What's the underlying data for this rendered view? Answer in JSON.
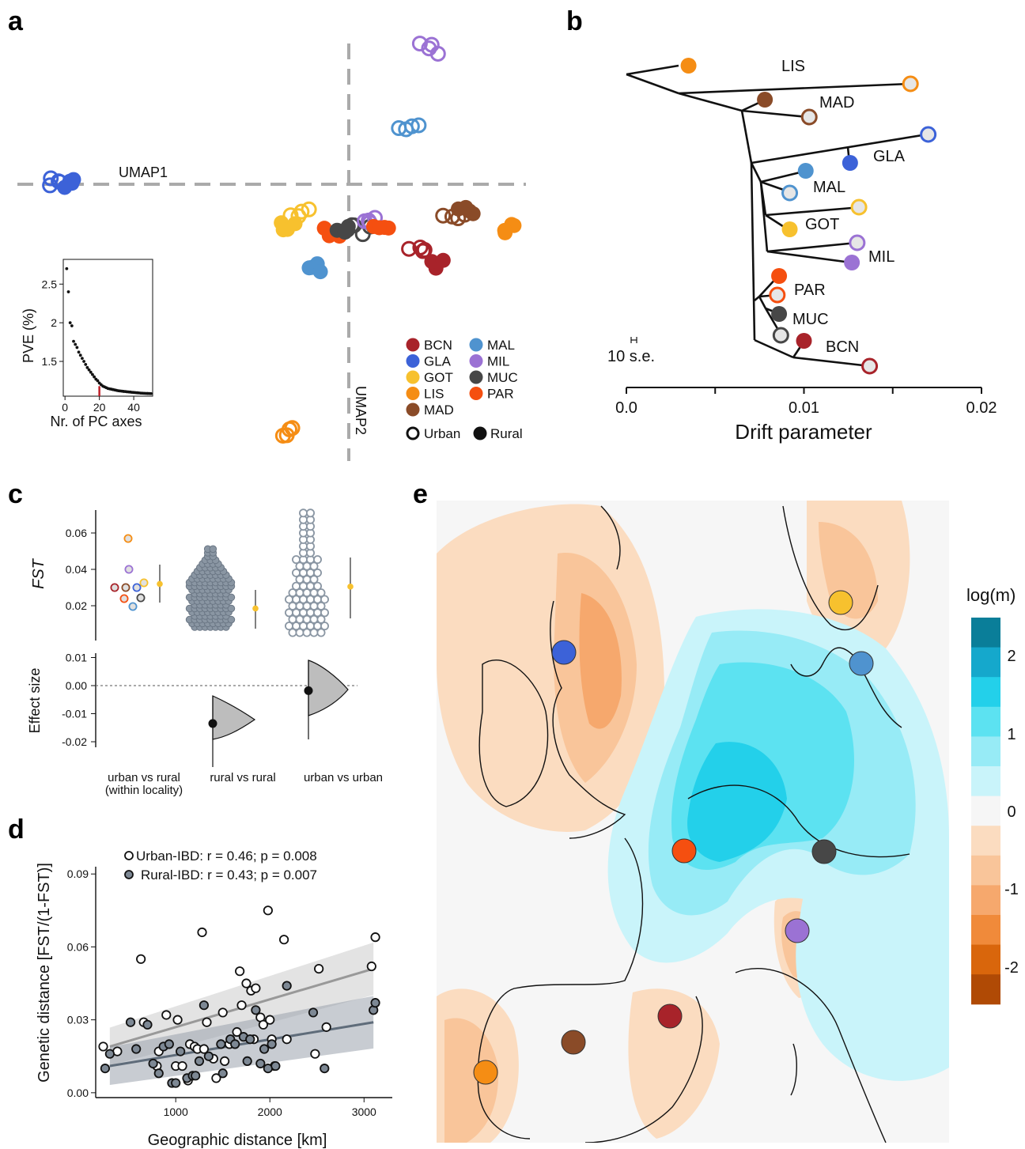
{
  "panels": {
    "a": "a",
    "b": "b",
    "c": "c",
    "d": "d",
    "e": "e"
  },
  "colors": {
    "BCN": "#a8232a",
    "GLA": "#3c62d8",
    "GOT": "#f7c12e",
    "LIS": "#f58d14",
    "MAD": "#8a4b28",
    "MAL": "#4f93cf",
    "MIL": "#9b72d4",
    "MUC": "#474747",
    "PAR": "#f54f10"
  },
  "chart_data": [
    {
      "id": "a",
      "type": "scatter",
      "axis_labels": {
        "umap1": "UMAP1",
        "umap2": "UMAP2"
      },
      "legend": {
        "position": "bottom-right",
        "items": [
          "BCN",
          "GLA",
          "GOT",
          "LIS",
          "MAD",
          "MAL",
          "MIL",
          "MUC",
          "PAR"
        ],
        "shape_items": {
          "urban": "Urban",
          "rural": "Rural"
        }
      },
      "clusters": [
        {
          "pop": "GLA",
          "x": -0.88,
          "y": 0.02,
          "urban": true
        },
        {
          "pop": "GLA",
          "x": -0.85,
          "y": 0.0,
          "urban": false
        },
        {
          "pop": "MIL",
          "x": 0.24,
          "y": 0.88,
          "urban": true
        },
        {
          "pop": "MAL",
          "x": 0.18,
          "y": 0.36,
          "urban": true
        },
        {
          "pop": "LIS",
          "x": 0.5,
          "y": -0.28,
          "urban": false
        },
        {
          "pop": "LIS",
          "x": -0.17,
          "y": -1.6,
          "urban": true
        },
        {
          "pop": "MAD",
          "x": 0.36,
          "y": -0.18,
          "urban": false
        },
        {
          "pop": "MAD",
          "x": 0.32,
          "y": -0.21,
          "urban": true
        },
        {
          "pop": "BCN",
          "x": 0.27,
          "y": -0.52,
          "urban": false
        },
        {
          "pop": "BCN",
          "x": 0.2,
          "y": -0.4,
          "urban": true
        },
        {
          "pop": "MAL",
          "x": -0.1,
          "y": -0.55,
          "urban": false
        },
        {
          "pop": "GOT",
          "x": -0.17,
          "y": -0.26,
          "urban": false
        },
        {
          "pop": "GOT",
          "x": -0.15,
          "y": -0.18,
          "urban": true
        },
        {
          "pop": "PAR",
          "x": -0.04,
          "y": -0.31,
          "urban": false
        },
        {
          "pop": "MUC",
          "x": 0.04,
          "y": -0.3,
          "urban": true
        },
        {
          "pop": "MIL",
          "x": 0.08,
          "y": -0.25,
          "urban": true
        },
        {
          "pop": "PAR",
          "x": 0.1,
          "y": -0.31,
          "urban": false
        },
        {
          "pop": "MUC",
          "x": 0.0,
          "y": -0.28,
          "urban": false
        }
      ],
      "inset": {
        "type": "scatter",
        "xlabel": "Nr. of PC axes",
        "ylabel": "PVE (%)",
        "xticks": [
          0,
          20,
          40
        ],
        "yticks": [
          1.5,
          2.0,
          2.5
        ],
        "xlim": [
          -1,
          51
        ],
        "ylim": [
          1.05,
          2.82
        ],
        "highlight_x": 20,
        "values": [
          2.7,
          2.4,
          2.0,
          1.96,
          1.76,
          1.72,
          1.68,
          1.62,
          1.58,
          1.54,
          1.5,
          1.46,
          1.42,
          1.39,
          1.36,
          1.33,
          1.3,
          1.27,
          1.25,
          1.22,
          1.2,
          1.18,
          1.17,
          1.16,
          1.15,
          1.145,
          1.14,
          1.135,
          1.13,
          1.125,
          1.12,
          1.118,
          1.115,
          1.112,
          1.11,
          1.107,
          1.105,
          1.103,
          1.1,
          1.098,
          1.096,
          1.094,
          1.092,
          1.09,
          1.088,
          1.087,
          1.086,
          1.085,
          1.084,
          1.083
        ]
      }
    },
    {
      "id": "b",
      "type": "tree",
      "xlabel": "Drift parameter",
      "xticks": [
        {
          "v": 0.0,
          "label": "0.0"
        },
        {
          "v": 0.01,
          "label": "0.01"
        },
        {
          "v": 0.02,
          "label": "0.02"
        }
      ],
      "xlim": [
        0,
        0.02
      ],
      "scale_label": "10 s.e.",
      "tips": [
        {
          "pop": "LIS",
          "label": "LIS",
          "urban": false,
          "x": 0.0035,
          "y": 0
        },
        {
          "pop": "LIS",
          "label": "",
          "urban": true,
          "x": 0.016,
          "y": 1
        },
        {
          "pop": "MAD",
          "label": "MAD",
          "urban": false,
          "x": 0.0078,
          "y": 2
        },
        {
          "pop": "MAD",
          "label": "",
          "urban": true,
          "x": 0.0103,
          "y": 3
        },
        {
          "pop": "GLA",
          "label": "",
          "urban": true,
          "x": 0.017,
          "y": 4
        },
        {
          "pop": "GLA",
          "label": "GLA",
          "urban": false,
          "x": 0.0126,
          "y": 5
        },
        {
          "pop": "MAL",
          "label": "",
          "urban": false,
          "x": 0.0101,
          "y": 6
        },
        {
          "pop": "MAL",
          "label": "MAL",
          "urban": true,
          "x": 0.0092,
          "y": 7
        },
        {
          "pop": "GOT",
          "label": "",
          "urban": true,
          "x": 0.0131,
          "y": 8
        },
        {
          "pop": "GOT",
          "label": "GOT",
          "urban": false,
          "x": 0.0092,
          "y": 9
        },
        {
          "pop": "MIL",
          "label": "",
          "urban": true,
          "x": 0.013,
          "y": 10
        },
        {
          "pop": "MIL",
          "label": "MIL",
          "urban": false,
          "x": 0.0127,
          "y": 11
        },
        {
          "pop": "PAR",
          "label": "PAR",
          "urban": false,
          "x": 0.0086,
          "y": 12
        },
        {
          "pop": "PAR",
          "label": "",
          "urban": true,
          "x": 0.0085,
          "y": 13
        },
        {
          "pop": "MUC",
          "label": "MUC",
          "urban": false,
          "x": 0.0086,
          "y": 14
        },
        {
          "pop": "MUC",
          "label": "",
          "urban": true,
          "x": 0.0087,
          "y": 15
        },
        {
          "pop": "BCN",
          "label": "BCN",
          "urban": false,
          "x": 0.01,
          "y": 16
        },
        {
          "pop": "BCN",
          "label": "",
          "urban": true,
          "x": 0.0137,
          "y": 17
        }
      ]
    },
    {
      "id": "c",
      "type": "scatter",
      "ylabel_top": "FST",
      "ylabel_bottom": "Effect size",
      "yticks_top": [
        "0.02",
        "0.04",
        "0.06"
      ],
      "yticks_bottom": [
        "0.01",
        "0.00",
        "-0.01",
        "-0.02"
      ],
      "groups": [
        {
          "label_lines": [
            "urban vs rural",
            "(within locality)"
          ],
          "mean": 0.032
        },
        {
          "label_lines": [
            "rural vs rural"
          ],
          "mean": 0.0185,
          "effect": -0.0135
        },
        {
          "label_lines": [
            "urban vs urban"
          ],
          "mean": 0.0305,
          "effect": -0.0018
        }
      ],
      "within_locality": [
        {
          "pop": "LIS",
          "v": 0.056
        },
        {
          "pop": "MIL",
          "v": 0.04
        },
        {
          "pop": "GOT",
          "v": 0.0325
        },
        {
          "pop": "BCN",
          "v": 0.03
        },
        {
          "pop": "MAD",
          "v": 0.03
        },
        {
          "pop": "GLA",
          "v": 0.03
        },
        {
          "pop": "PAR",
          "v": 0.0245
        },
        {
          "pop": "MUC",
          "v": 0.0245
        },
        {
          "pop": "MAL",
          "v": 0.02
        }
      ]
    },
    {
      "id": "d",
      "type": "scatter",
      "xlabel": "Geographic distance [km]",
      "ylabel": "Genetic distance [FST/(1-FST)]",
      "xticks": [
        1000,
        2000,
        3000
      ],
      "yticks": [
        "0.00",
        "0.03",
        "0.06",
        "0.09"
      ],
      "xlim": [
        150,
        3300
      ],
      "ylim": [
        -0.002,
        0.093
      ],
      "legend": [
        "Urban-IBD: r = 0.46; p = 0.008",
        "Rural-IBD: r = 0.43; p = 0.007"
      ],
      "series": [
        {
          "name": "Urban-IBD",
          "fit": [
            [
              300,
              0.019
            ],
            [
              3100,
              0.051
            ]
          ],
          "band": 0.006,
          "x": [
            230,
            380,
            630,
            660,
            800,
            820,
            900,
            1000,
            1020,
            1070,
            1130,
            1150,
            1200,
            1230,
            1280,
            1300,
            1330,
            1400,
            1430,
            1500,
            1520,
            1570,
            1650,
            1680,
            1700,
            1750,
            1800,
            1830,
            1850,
            1900,
            1930,
            1980,
            2000,
            2020,
            2050,
            2150,
            2180,
            2480,
            2520,
            2600,
            3080,
            3120
          ],
          "y": [
            0.019,
            0.017,
            0.055,
            0.029,
            0.011,
            0.017,
            0.032,
            0.011,
            0.03,
            0.011,
            0.005,
            0.02,
            0.019,
            0.018,
            0.066,
            0.018,
            0.029,
            0.014,
            0.006,
            0.033,
            0.013,
            0.02,
            0.025,
            0.05,
            0.036,
            0.045,
            0.042,
            0.022,
            0.043,
            0.031,
            0.028,
            0.075,
            0.03,
            0.022,
            0.011,
            0.063,
            0.022,
            0.016,
            0.051,
            0.027,
            0.052,
            0.064
          ]
        },
        {
          "name": "Rural-IBD",
          "fit": [
            [
              300,
              0.011
            ],
            [
              3100,
              0.029
            ]
          ],
          "band": 0.006,
          "x": [
            250,
            300,
            520,
            580,
            700,
            760,
            820,
            870,
            930,
            960,
            1000,
            1050,
            1120,
            1180,
            1210,
            1250,
            1300,
            1350,
            1480,
            1500,
            1580,
            1630,
            1720,
            1760,
            1790,
            1850,
            1900,
            1940,
            1980,
            2020,
            2060,
            2180,
            2460,
            2580,
            3100,
            3120
          ],
          "y": [
            0.01,
            0.016,
            0.029,
            0.018,
            0.028,
            0.012,
            0.008,
            0.019,
            0.02,
            0.004,
            0.004,
            0.017,
            0.006,
            0.007,
            0.007,
            0.013,
            0.036,
            0.015,
            0.02,
            0.008,
            0.022,
            0.02,
            0.023,
            0.013,
            0.022,
            0.034,
            0.012,
            0.018,
            0.01,
            0.02,
            0.011,
            0.044,
            0.033,
            0.01,
            0.034,
            0.037
          ]
        }
      ]
    },
    {
      "id": "e",
      "type": "heatmap",
      "legend_title": "log(m)",
      "scale_ticks": [
        "2",
        "1",
        "0",
        "-1",
        "-2"
      ],
      "scale_colors": [
        "#0a7e99",
        "#15a8cc",
        "#23d0ea",
        "#5ce2f1",
        "#97ebf6",
        "#c9f4fa",
        "#f6f6f6",
        "#fbdcc0",
        "#f9c59a",
        "#f6a86d",
        "#f08a3a",
        "#d9660c",
        "#b04a05"
      ],
      "sites": [
        {
          "pop": "GOT"
        },
        {
          "pop": "GLA"
        },
        {
          "pop": "MAL"
        },
        {
          "pop": "PAR"
        },
        {
          "pop": "MUC"
        },
        {
          "pop": "MIL"
        },
        {
          "pop": "BCN"
        },
        {
          "pop": "MAD"
        },
        {
          "pop": "LIS"
        }
      ]
    }
  ]
}
